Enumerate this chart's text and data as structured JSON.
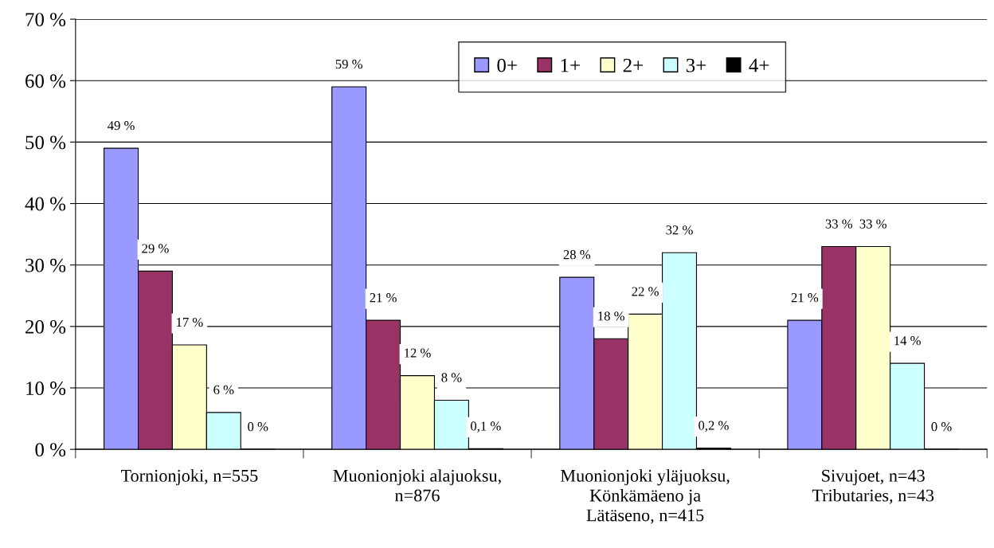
{
  "chart_data": {
    "type": "bar",
    "categories": [
      "Tornionjoki, n=555",
      "Muonionjoki alajuoksu,\nn=876",
      "Muonionjoki yläjuoksu,\nKönkämäeno ja\nLätäseno, n=415",
      "Sivujoet, n=43\nTributaries, n=43"
    ],
    "series": [
      {
        "name": "0+",
        "color": "#9999ff",
        "values": [
          49,
          59,
          28,
          21
        ],
        "value_labels": [
          "49 %",
          "59 %",
          "28 %",
          "21 %"
        ]
      },
      {
        "name": "1+",
        "color": "#993366",
        "values": [
          29,
          21,
          18,
          33
        ],
        "value_labels": [
          "29 %",
          "21 %",
          "18 %",
          "33 %"
        ]
      },
      {
        "name": "2+",
        "color": "#ffffcc",
        "values": [
          17,
          12,
          22,
          33
        ],
        "value_labels": [
          "17 %",
          "12 %",
          "22 %",
          "33 %"
        ]
      },
      {
        "name": "3+",
        "color": "#ccffff",
        "values": [
          6,
          8,
          32,
          14
        ],
        "value_labels": [
          "6 %",
          "8 %",
          "32 %",
          "14 %"
        ]
      },
      {
        "name": "4+",
        "color": "#000000",
        "values": [
          0,
          0.1,
          0.2,
          0
        ],
        "value_labels": [
          "0 %",
          "0,1 %",
          "0,2 %",
          "0 %"
        ]
      }
    ],
    "ylim": [
      0,
      70
    ],
    "yticks": [
      {
        "value": 0,
        "label": "0 %"
      },
      {
        "value": 10,
        "label": "10 %"
      },
      {
        "value": 20,
        "label": "20 %"
      },
      {
        "value": 30,
        "label": "30 %"
      },
      {
        "value": 40,
        "label": "40 %"
      },
      {
        "value": 50,
        "label": "50 %"
      },
      {
        "value": 60,
        "label": "60 %"
      },
      {
        "value": 70,
        "label": "70 %"
      }
    ],
    "grid": "y",
    "legend": "top right"
  }
}
